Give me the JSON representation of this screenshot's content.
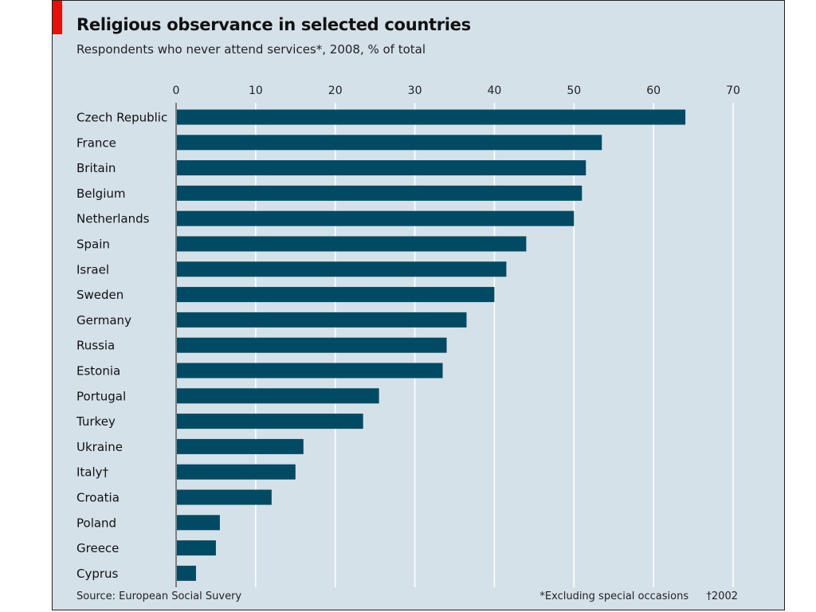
{
  "chart_data": {
    "type": "bar",
    "orientation": "horizontal",
    "title": "Religious observance in selected countries",
    "subtitle": "Respondents who never attend services*, 2008, % of total",
    "categories": [
      "Czech Republic",
      "France",
      "Britain",
      "Belgium",
      "Netherlands",
      "Spain",
      "Israel",
      "Sweden",
      "Germany",
      "Russia",
      "Estonia",
      "Portugal",
      "Turkey",
      "Ukraine",
      "Italy†",
      "Croatia",
      "Poland",
      "Greece",
      "Cyprus"
    ],
    "values": [
      64,
      53.5,
      51.5,
      51,
      50,
      44,
      41.5,
      40,
      36.5,
      34,
      33.5,
      25.5,
      23.5,
      16,
      15,
      12,
      5.5,
      5,
      2.5
    ],
    "xlim": [
      0,
      70
    ],
    "xticks": [
      "0",
      "10",
      "20",
      "30",
      "40",
      "50",
      "60",
      "70"
    ],
    "grid": true,
    "source": "Source: European Social Suvery",
    "footnote_main": "*Excluding special occasions",
    "footnote_dagger": "†2002",
    "colors": {
      "bar": "#004b63",
      "background": "#d5e1e9",
      "gridline": "#ffffff",
      "accent": "#e3120b"
    }
  }
}
